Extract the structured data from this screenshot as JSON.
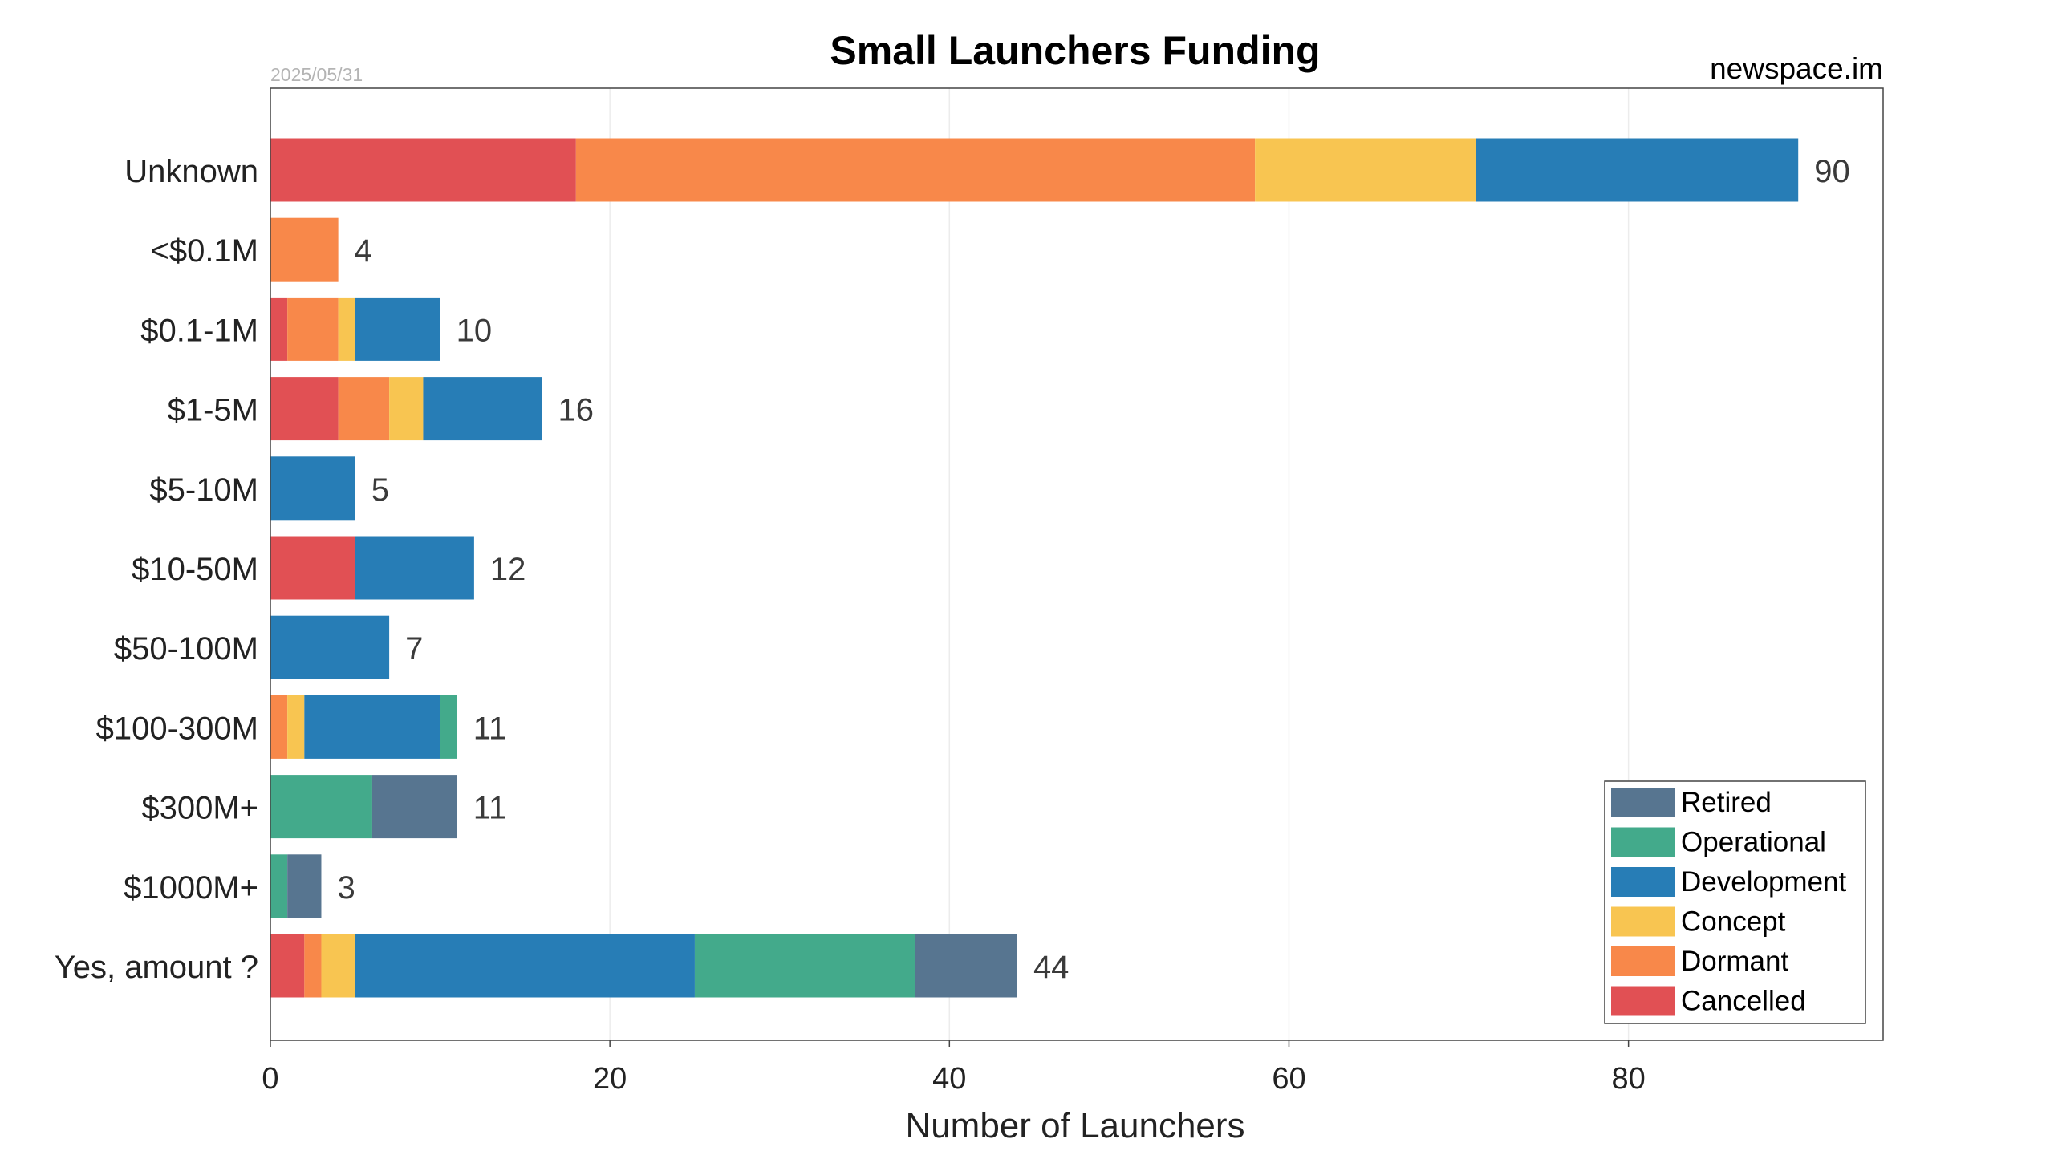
{
  "chart_data": {
    "type": "bar",
    "orientation": "horizontal",
    "stacked": true,
    "title": "Small Launchers Funding",
    "date": "2025/05/31",
    "source": "newspace.im",
    "xlabel": "Number of Launchers",
    "ylabel": "",
    "xlim": [
      0,
      95
    ],
    "xticks": [
      0,
      20,
      40,
      60,
      80
    ],
    "grid": true,
    "legend_position": "bottom-right",
    "categories": [
      "Unknown",
      "<$0.1M",
      "$0.1-1M",
      "$1-5M",
      "$5-10M",
      "$10-50M",
      "$50-100M",
      "$100-300M",
      "$300M+",
      "$1000M+",
      "Yes, amount ?"
    ],
    "totals": [
      90,
      4,
      10,
      16,
      5,
      12,
      7,
      11,
      11,
      3,
      44
    ],
    "series": [
      {
        "name": "Cancelled",
        "color": "#e15054",
        "values": [
          18,
          0,
          1,
          4,
          0,
          5,
          0,
          0,
          0,
          0,
          2
        ]
      },
      {
        "name": "Dormant",
        "color": "#f8884a",
        "values": [
          40,
          4,
          3,
          3,
          0,
          0,
          0,
          1,
          0,
          0,
          1
        ]
      },
      {
        "name": "Concept",
        "color": "#f8c551",
        "values": [
          13,
          0,
          1,
          2,
          0,
          0,
          0,
          1,
          0,
          0,
          2
        ]
      },
      {
        "name": "Development",
        "color": "#277db6",
        "values": [
          19,
          0,
          5,
          7,
          5,
          7,
          7,
          8,
          0,
          0,
          20
        ]
      },
      {
        "name": "Operational",
        "color": "#43aa8b",
        "values": [
          0,
          0,
          0,
          0,
          0,
          0,
          0,
          1,
          6,
          1,
          13
        ]
      },
      {
        "name": "Retired",
        "color": "#577590",
        "values": [
          0,
          0,
          0,
          0,
          0,
          0,
          0,
          0,
          5,
          2,
          6
        ]
      }
    ],
    "legend_order": [
      "Retired",
      "Operational",
      "Development",
      "Concept",
      "Dormant",
      "Cancelled"
    ]
  }
}
